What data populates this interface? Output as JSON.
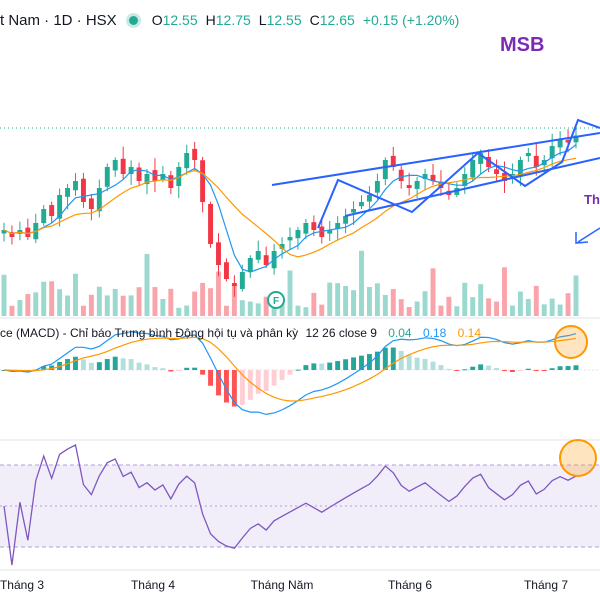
{
  "header": {
    "title": "t Nam · 1D · HSX",
    "o_label": "O",
    "o_value": "12.55",
    "h_label": "H",
    "h_value": "12.75",
    "l_label": "L",
    "l_value": "12.55",
    "c_label": "C",
    "c_value": "12.65",
    "change": "+0.15 (+1.20%)"
  },
  "brand": "MSB",
  "annotation_text": "Th",
  "macd_panel": {
    "label": "ce (MACD) - Chỉ báo Trung bình Động hội tụ và phân kỳ",
    "params": "12 26 close 9",
    "histogram_value": "0.04",
    "macd_value": "0.18",
    "signal_value": "0.14"
  },
  "event_marker": "F",
  "x_axis": {
    "ticks": [
      "Tháng 3",
      "Tháng 4",
      "Tháng Năm",
      "Tháng 6",
      "Tháng 7"
    ]
  },
  "colors": {
    "up": "#22ab94",
    "down": "#f23645",
    "ma_fast": "#2196f3",
    "ma_slow": "#ff9800",
    "rsi": "#7e57c2",
    "trendline": "#2962ff",
    "brand": "#7b2ab3"
  },
  "chart_data": {
    "type": "candlestick",
    "ticker": "MSB",
    "exchange": "HSX",
    "interval": "1D",
    "x_ticks": [
      "Tháng 3",
      "Tháng 4",
      "Tháng Năm",
      "Tháng 6",
      "Tháng 7"
    ],
    "approx_close_series": [
      11.3,
      11.2,
      11.3,
      11.2,
      11.4,
      11.6,
      11.5,
      11.8,
      11.9,
      12.0,
      11.7,
      11.6,
      11.9,
      12.2,
      12.3,
      12.1,
      12.2,
      12.0,
      12.1,
      12.0,
      12.1,
      11.9,
      12.2,
      12.4,
      12.3,
      11.7,
      11.1,
      10.8,
      10.6,
      10.5,
      10.7,
      10.9,
      11.0,
      10.8,
      11.0,
      11.1,
      11.2,
      11.3,
      11.4,
      11.3,
      11.2,
      11.3,
      11.4,
      11.5,
      11.6,
      11.7,
      11.8,
      12.0,
      12.3,
      12.2,
      12.0,
      11.9,
      12.0,
      12.1,
      12.0,
      11.9,
      11.8,
      11.9,
      12.1,
      12.3,
      12.4,
      12.2,
      12.1,
      12.0,
      12.1,
      12.3,
      12.4,
      12.2,
      12.3,
      12.5,
      12.6,
      12.55,
      12.65
    ],
    "last_bar": {
      "open": 12.55,
      "high": 12.75,
      "low": 12.55,
      "close": 12.65,
      "change": 0.15,
      "change_pct": 1.2
    },
    "macd": {
      "fast": 12,
      "slow": 26,
      "source": "close",
      "signal": 9,
      "histogram": 0.04,
      "macd": 0.18,
      "signal_value": 0.14
    },
    "grid": true
  }
}
